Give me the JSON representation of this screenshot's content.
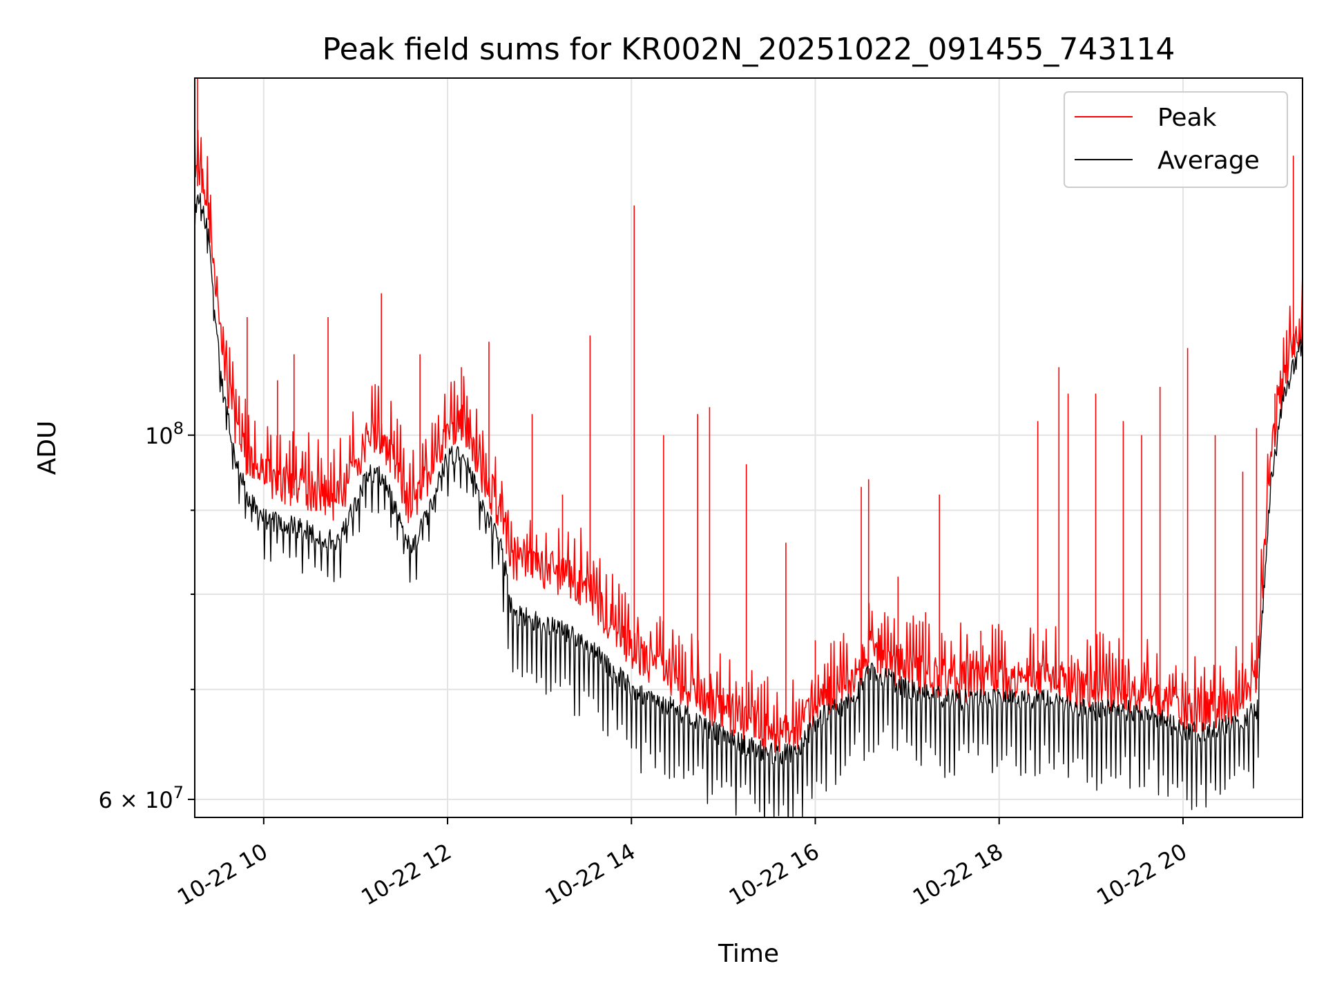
{
  "chart_data": {
    "type": "line",
    "title": "Peak field sums for KR002N_20251022_091455_743114",
    "xlabel": "Time",
    "ylabel": "ADU",
    "yscale": "log",
    "xlim_hours": [
      9.25,
      21.3
    ],
    "ylim": [
      58500000,
      165000000
    ],
    "grid": true,
    "legend_loc": "upper right",
    "x_ticks": [
      {
        "value": 10,
        "label": "10-22 10"
      },
      {
        "value": 12,
        "label": "10-22 12"
      },
      {
        "value": 14,
        "label": "10-22 14"
      },
      {
        "value": 16,
        "label": "10-22 16"
      },
      {
        "value": 18,
        "label": "10-22 18"
      },
      {
        "value": 20,
        "label": "10-22 20"
      }
    ],
    "y_major_ticks": [
      {
        "value": 60000000,
        "label_base": "6 × 10",
        "label_exp": "7"
      },
      {
        "value": 100000000,
        "label_base": "10",
        "label_exp": "8"
      }
    ],
    "y_minor_ticks": [
      70000000,
      80000000,
      90000000
    ],
    "series": [
      {
        "name": "Peak",
        "color": "#ff0000",
        "baseline": {
          "x": [
            9.25,
            9.3,
            9.4,
            9.55,
            9.7,
            9.85,
            10.0,
            10.3,
            10.6,
            10.8,
            11.0,
            11.15,
            11.3,
            11.5,
            11.6,
            11.8,
            12.0,
            12.15,
            12.4,
            12.6,
            12.7,
            13.0,
            13.5,
            13.7,
            14.0,
            14.5,
            15.0,
            15.5,
            15.8,
            16.0,
            16.4,
            16.6,
            17.0,
            17.5,
            18.0,
            18.5,
            19.0,
            19.5,
            19.8,
            20.0,
            20.3,
            20.6,
            20.8,
            20.95,
            21.1,
            21.3
          ],
          "y": [
            140000000,
            143000000,
            135000000,
            110000000,
            100000000,
            95000000,
            93000000,
            92000000,
            91000000,
            90000000,
            95000000,
            99000000,
            98000000,
            92000000,
            89000000,
            94000000,
            100000000,
            101000000,
            93000000,
            88000000,
            83000000,
            82000000,
            80000000,
            77000000,
            73000000,
            70000000,
            67000000,
            65000000,
            65000000,
            68000000,
            70000000,
            73000000,
            71000000,
            70000000,
            70000000,
            70000000,
            69000000,
            69000000,
            68000000,
            67000000,
            67000000,
            68000000,
            70000000,
            95000000,
            108000000,
            116000000
          ]
        },
        "spikes": [
          [
            9.28,
            165000000
          ],
          [
            9.82,
            118000000
          ],
          [
            10.15,
            108000000
          ],
          [
            10.33,
            112000000
          ],
          [
            10.7,
            118000000
          ],
          [
            11.28,
            122000000
          ],
          [
            11.7,
            112000000
          ],
          [
            12.15,
            110000000
          ],
          [
            12.45,
            114000000
          ],
          [
            12.92,
            103000000
          ],
          [
            13.25,
            92000000
          ],
          [
            13.55,
            115000000
          ],
          [
            14.03,
            138000000
          ],
          [
            14.35,
            100000000
          ],
          [
            14.72,
            103000000
          ],
          [
            14.85,
            104000000
          ],
          [
            15.25,
            96000000
          ],
          [
            15.68,
            86000000
          ],
          [
            16.0,
            75000000
          ],
          [
            16.5,
            93000000
          ],
          [
            16.58,
            94000000
          ],
          [
            16.9,
            82000000
          ],
          [
            17.2,
            78000000
          ],
          [
            17.35,
            92000000
          ],
          [
            17.8,
            76000000
          ],
          [
            18.42,
            102000000
          ],
          [
            18.65,
            110000000
          ],
          [
            18.75,
            106000000
          ],
          [
            19.05,
            106000000
          ],
          [
            19.35,
            102000000
          ],
          [
            19.55,
            100000000
          ],
          [
            19.75,
            107000000
          ],
          [
            20.05,
            113000000
          ],
          [
            20.35,
            100000000
          ],
          [
            20.65,
            95000000
          ],
          [
            20.8,
            101000000
          ],
          [
            21.0,
            106000000
          ],
          [
            21.2,
            148000000
          ]
        ]
      },
      {
        "name": "Average",
        "color": "#000000",
        "baseline": {
          "x": [
            9.25,
            9.3,
            9.4,
            9.55,
            9.7,
            9.85,
            10.0,
            10.3,
            10.6,
            10.8,
            11.0,
            11.15,
            11.3,
            11.5,
            11.6,
            11.8,
            12.0,
            12.15,
            12.4,
            12.6,
            12.7,
            13.0,
            13.5,
            13.7,
            14.0,
            14.5,
            15.0,
            15.5,
            15.8,
            16.0,
            16.4,
            16.6,
            17.0,
            17.5,
            18.0,
            18.5,
            19.0,
            19.5,
            19.8,
            20.0,
            20.3,
            20.6,
            20.8,
            20.95,
            21.1,
            21.3
          ],
          "y": [
            137000000,
            140000000,
            132000000,
            107000000,
            96000000,
            91000000,
            89000000,
            88000000,
            87000000,
            86000000,
            91000000,
            95000000,
            94000000,
            88000000,
            85000000,
            90000000,
            97000000,
            98000000,
            90000000,
            85000000,
            78000000,
            77000000,
            75000000,
            73000000,
            70000000,
            68000000,
            65500000,
            64000000,
            64000000,
            67000000,
            69000000,
            72000000,
            70000000,
            69000000,
            69000000,
            69000000,
            68000000,
            68000000,
            67000000,
            66000000,
            66000000,
            67000000,
            68000000,
            93000000,
            106000000,
            114000000
          ]
        },
        "dip_depth_ratio": 0.09
      }
    ]
  }
}
